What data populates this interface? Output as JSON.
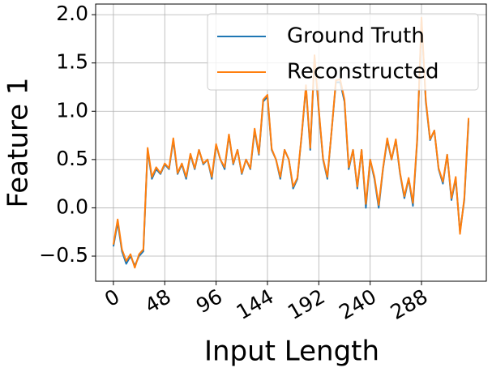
{
  "chart_data": {
    "type": "line",
    "xlabel": "Input Length",
    "ylabel": "Feature 1",
    "x": [
      0,
      4,
      8,
      12,
      16,
      20,
      24,
      28,
      32,
      36,
      40,
      44,
      48,
      52,
      56,
      60,
      64,
      68,
      72,
      76,
      80,
      84,
      88,
      92,
      96,
      100,
      104,
      108,
      112,
      116,
      120,
      124,
      128,
      132,
      136,
      140,
      144,
      148,
      152,
      156,
      160,
      164,
      168,
      172,
      176,
      180,
      184,
      188,
      192,
      196,
      200,
      204,
      208,
      212,
      216,
      220,
      224,
      228,
      232,
      236,
      240,
      244,
      248,
      252,
      256,
      260,
      264,
      268,
      272,
      276,
      280,
      284,
      288,
      292,
      296,
      300,
      304,
      308,
      312,
      316,
      320,
      324,
      328,
      332
    ],
    "series": [
      {
        "name": "Ground Truth",
        "color": "#1f77b4",
        "values": [
          -0.4,
          -0.15,
          -0.45,
          -0.58,
          -0.5,
          -0.6,
          -0.5,
          -0.45,
          0.6,
          0.3,
          0.4,
          0.35,
          0.45,
          0.4,
          0.7,
          0.35,
          0.45,
          0.3,
          0.55,
          0.4,
          0.6,
          0.45,
          0.5,
          0.3,
          0.65,
          0.5,
          0.4,
          0.75,
          0.45,
          0.6,
          0.35,
          0.5,
          0.4,
          0.8,
          0.55,
          1.1,
          1.15,
          0.6,
          0.5,
          0.3,
          0.6,
          0.5,
          0.2,
          0.3,
          0.75,
          1.25,
          0.6,
          1.55,
          1.0,
          0.5,
          0.3,
          0.8,
          1.3,
          1.3,
          1.1,
          0.4,
          0.6,
          0.2,
          0.6,
          0.0,
          0.5,
          0.3,
          0.0,
          0.4,
          0.7,
          0.5,
          0.7,
          0.35,
          0.1,
          0.3,
          0.02,
          0.7,
          1.95,
          1.1,
          0.7,
          0.8,
          0.4,
          0.25,
          0.55,
          0.08,
          0.3,
          -0.25,
          0.08,
          0.9
        ]
      },
      {
        "name": "Reconstructed",
        "color": "#ff7f0e",
        "values": [
          -0.38,
          -0.12,
          -0.43,
          -0.55,
          -0.48,
          -0.62,
          -0.48,
          -0.43,
          0.62,
          0.32,
          0.42,
          0.36,
          0.46,
          0.41,
          0.72,
          0.36,
          0.46,
          0.32,
          0.56,
          0.41,
          0.6,
          0.46,
          0.5,
          0.32,
          0.66,
          0.5,
          0.42,
          0.76,
          0.46,
          0.6,
          0.36,
          0.5,
          0.41,
          0.82,
          0.56,
          1.12,
          1.17,
          0.61,
          0.5,
          0.32,
          0.6,
          0.5,
          0.22,
          0.31,
          0.76,
          1.27,
          0.62,
          1.58,
          1.02,
          0.51,
          0.32,
          0.8,
          1.32,
          1.33,
          1.12,
          0.42,
          0.6,
          0.22,
          0.6,
          0.04,
          0.5,
          0.32,
          0.03,
          0.41,
          0.72,
          0.5,
          0.71,
          0.36,
          0.12,
          0.31,
          0.05,
          0.72,
          1.97,
          1.12,
          0.71,
          0.8,
          0.41,
          0.27,
          0.55,
          0.1,
          0.32,
          -0.27,
          0.1,
          0.93
        ]
      }
    ],
    "xlim": [
      -16.6,
      348.6
    ],
    "ylim": [
      -0.76,
      2.11
    ],
    "xticks": [
      0,
      48,
      96,
      144,
      192,
      240,
      288
    ],
    "yticks": [
      {
        "value": -0.5,
        "label": "−0.5"
      },
      {
        "value": 0,
        "label": "0.0"
      },
      {
        "value": 0.5,
        "label": "0.5"
      },
      {
        "value": 1,
        "label": "1.0"
      },
      {
        "value": 1.5,
        "label": "1.5"
      },
      {
        "value": 2,
        "label": "2.0"
      }
    ],
    "grid": true,
    "legend": "upper right"
  }
}
